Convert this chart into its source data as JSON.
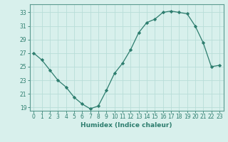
{
  "x": [
    0,
    1,
    2,
    3,
    4,
    5,
    6,
    7,
    8,
    9,
    10,
    11,
    12,
    13,
    14,
    15,
    16,
    17,
    18,
    19,
    20,
    21,
    22,
    23
  ],
  "y": [
    27,
    26,
    24.5,
    23,
    22,
    20.5,
    19.5,
    18.8,
    19.2,
    21.5,
    24,
    25.5,
    27.5,
    30,
    31.5,
    32,
    33,
    33.2,
    33,
    32.8,
    31,
    28.5,
    25,
    25.2
  ],
  "line_color": "#2d7d6e",
  "marker_color": "#2d7d6e",
  "bg_color": "#d8f0ec",
  "grid_color": "#b8ddd8",
  "spine_color": "#5a9a90",
  "xlabel": "Humidex (Indice chaleur)",
  "xlim": [
    -0.5,
    23.5
  ],
  "ylim": [
    18.5,
    34.2
  ],
  "yticks": [
    19,
    21,
    23,
    25,
    27,
    29,
    31,
    33
  ],
  "xticks": [
    0,
    1,
    2,
    3,
    4,
    5,
    6,
    7,
    8,
    9,
    10,
    11,
    12,
    13,
    14,
    15,
    16,
    17,
    18,
    19,
    20,
    21,
    22,
    23
  ],
  "tick_fontsize": 5.5,
  "xlabel_fontsize": 6.5
}
